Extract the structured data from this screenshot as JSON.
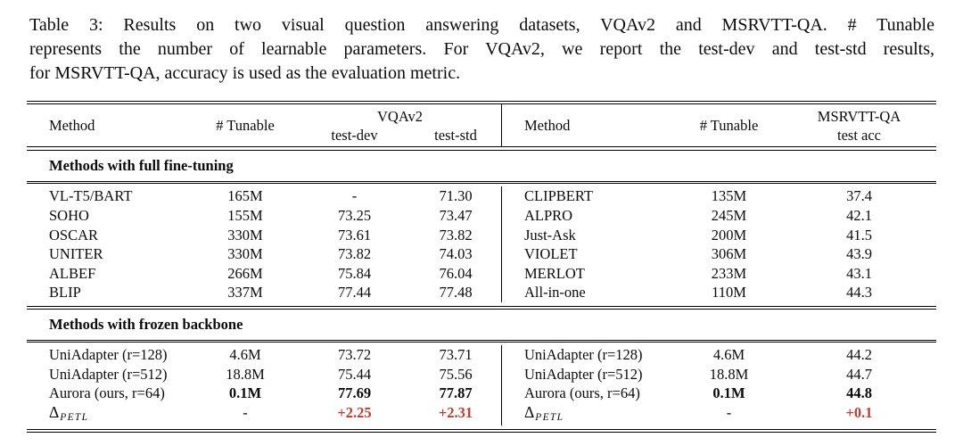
{
  "page": {
    "background": "#ffffff",
    "text_color": "#0b0b0b",
    "accent_red": "#c23b2d"
  },
  "caption": {
    "label": "Table 3:",
    "lines": [
      "Table 3: Results on two visual question answering datasets, VQAv2 and MSRVTT-QA. # Tunable",
      "represents the number of learnable parameters. For VQAv2, we report the test-dev and test-std results,",
      "for MSRVTT-QA, accuracy is used as the evaluation metric."
    ]
  },
  "header": {
    "left": {
      "method": "Method",
      "tunable": "# Tunable",
      "group": "VQAv2",
      "sub_dev": "test-dev",
      "sub_std": "test-std"
    },
    "right": {
      "method": "Method",
      "tunable": "# Tunable",
      "group": "MSRVTT-QA",
      "sub_acc": "test acc"
    }
  },
  "sections": [
    {
      "title": "Methods with full fine-tuning",
      "left_rows": [
        {
          "method": "VL-T5/BART",
          "tunable": "165M",
          "dev": "-",
          "std": "71.30"
        },
        {
          "method": "SOHO",
          "tunable": "155M",
          "dev": "73.25",
          "std": "73.47"
        },
        {
          "method": "OSCAR",
          "tunable": "330M",
          "dev": "73.61",
          "std": "73.82"
        },
        {
          "method": "UNITER",
          "tunable": "330M",
          "dev": "73.82",
          "std": "74.03"
        },
        {
          "method": "ALBEF",
          "tunable": "266M",
          "dev": "75.84",
          "std": "76.04"
        },
        {
          "method": "BLIP",
          "tunable": "337M",
          "dev": "77.44",
          "std": "77.48"
        }
      ],
      "right_rows": [
        {
          "method": "CLIPBERT",
          "tunable": "135M",
          "acc": "37.4"
        },
        {
          "method": "ALPRO",
          "tunable": "245M",
          "acc": "42.1"
        },
        {
          "method": "Just-Ask",
          "tunable": "200M",
          "acc": "41.5"
        },
        {
          "method": "VIOLET",
          "tunable": "306M",
          "acc": "43.9"
        },
        {
          "method": "MERLOT",
          "tunable": "233M",
          "acc": "43.1"
        },
        {
          "method": "All-in-one",
          "tunable": "110M",
          "acc": "44.3"
        }
      ]
    },
    {
      "title": "Methods with frozen backbone",
      "left_rows": [
        {
          "method": "UniAdapter (r=128)",
          "tunable": "4.6M",
          "dev": "73.72",
          "std": "73.71"
        },
        {
          "method": "UniAdapter (r=512)",
          "tunable": "18.8M",
          "dev": "75.44",
          "std": "75.56"
        },
        {
          "method": "Aurora (ours, r=64)",
          "tunable": "0.1M",
          "dev": "77.69",
          "std": "77.87",
          "bold": true
        },
        {
          "method_delta": {
            "symbol": "Δ",
            "sub": "PETL"
          },
          "tunable": "-",
          "dev": "+2.25",
          "std": "+2.31",
          "red": true
        }
      ],
      "right_rows": [
        {
          "method": "UniAdapter (r=128)",
          "tunable": "4.6M",
          "acc": "44.2"
        },
        {
          "method": "UniAdapter (r=512)",
          "tunable": "18.8M",
          "acc": "44.7"
        },
        {
          "method": "Aurora (ours, r=64)",
          "tunable": "0.1M",
          "acc": "44.8",
          "bold": true
        },
        {
          "method_delta": {
            "symbol": "Δ",
            "sub": "PETL"
          },
          "tunable": "-",
          "acc": "+0.1",
          "red": true
        }
      ]
    }
  ]
}
